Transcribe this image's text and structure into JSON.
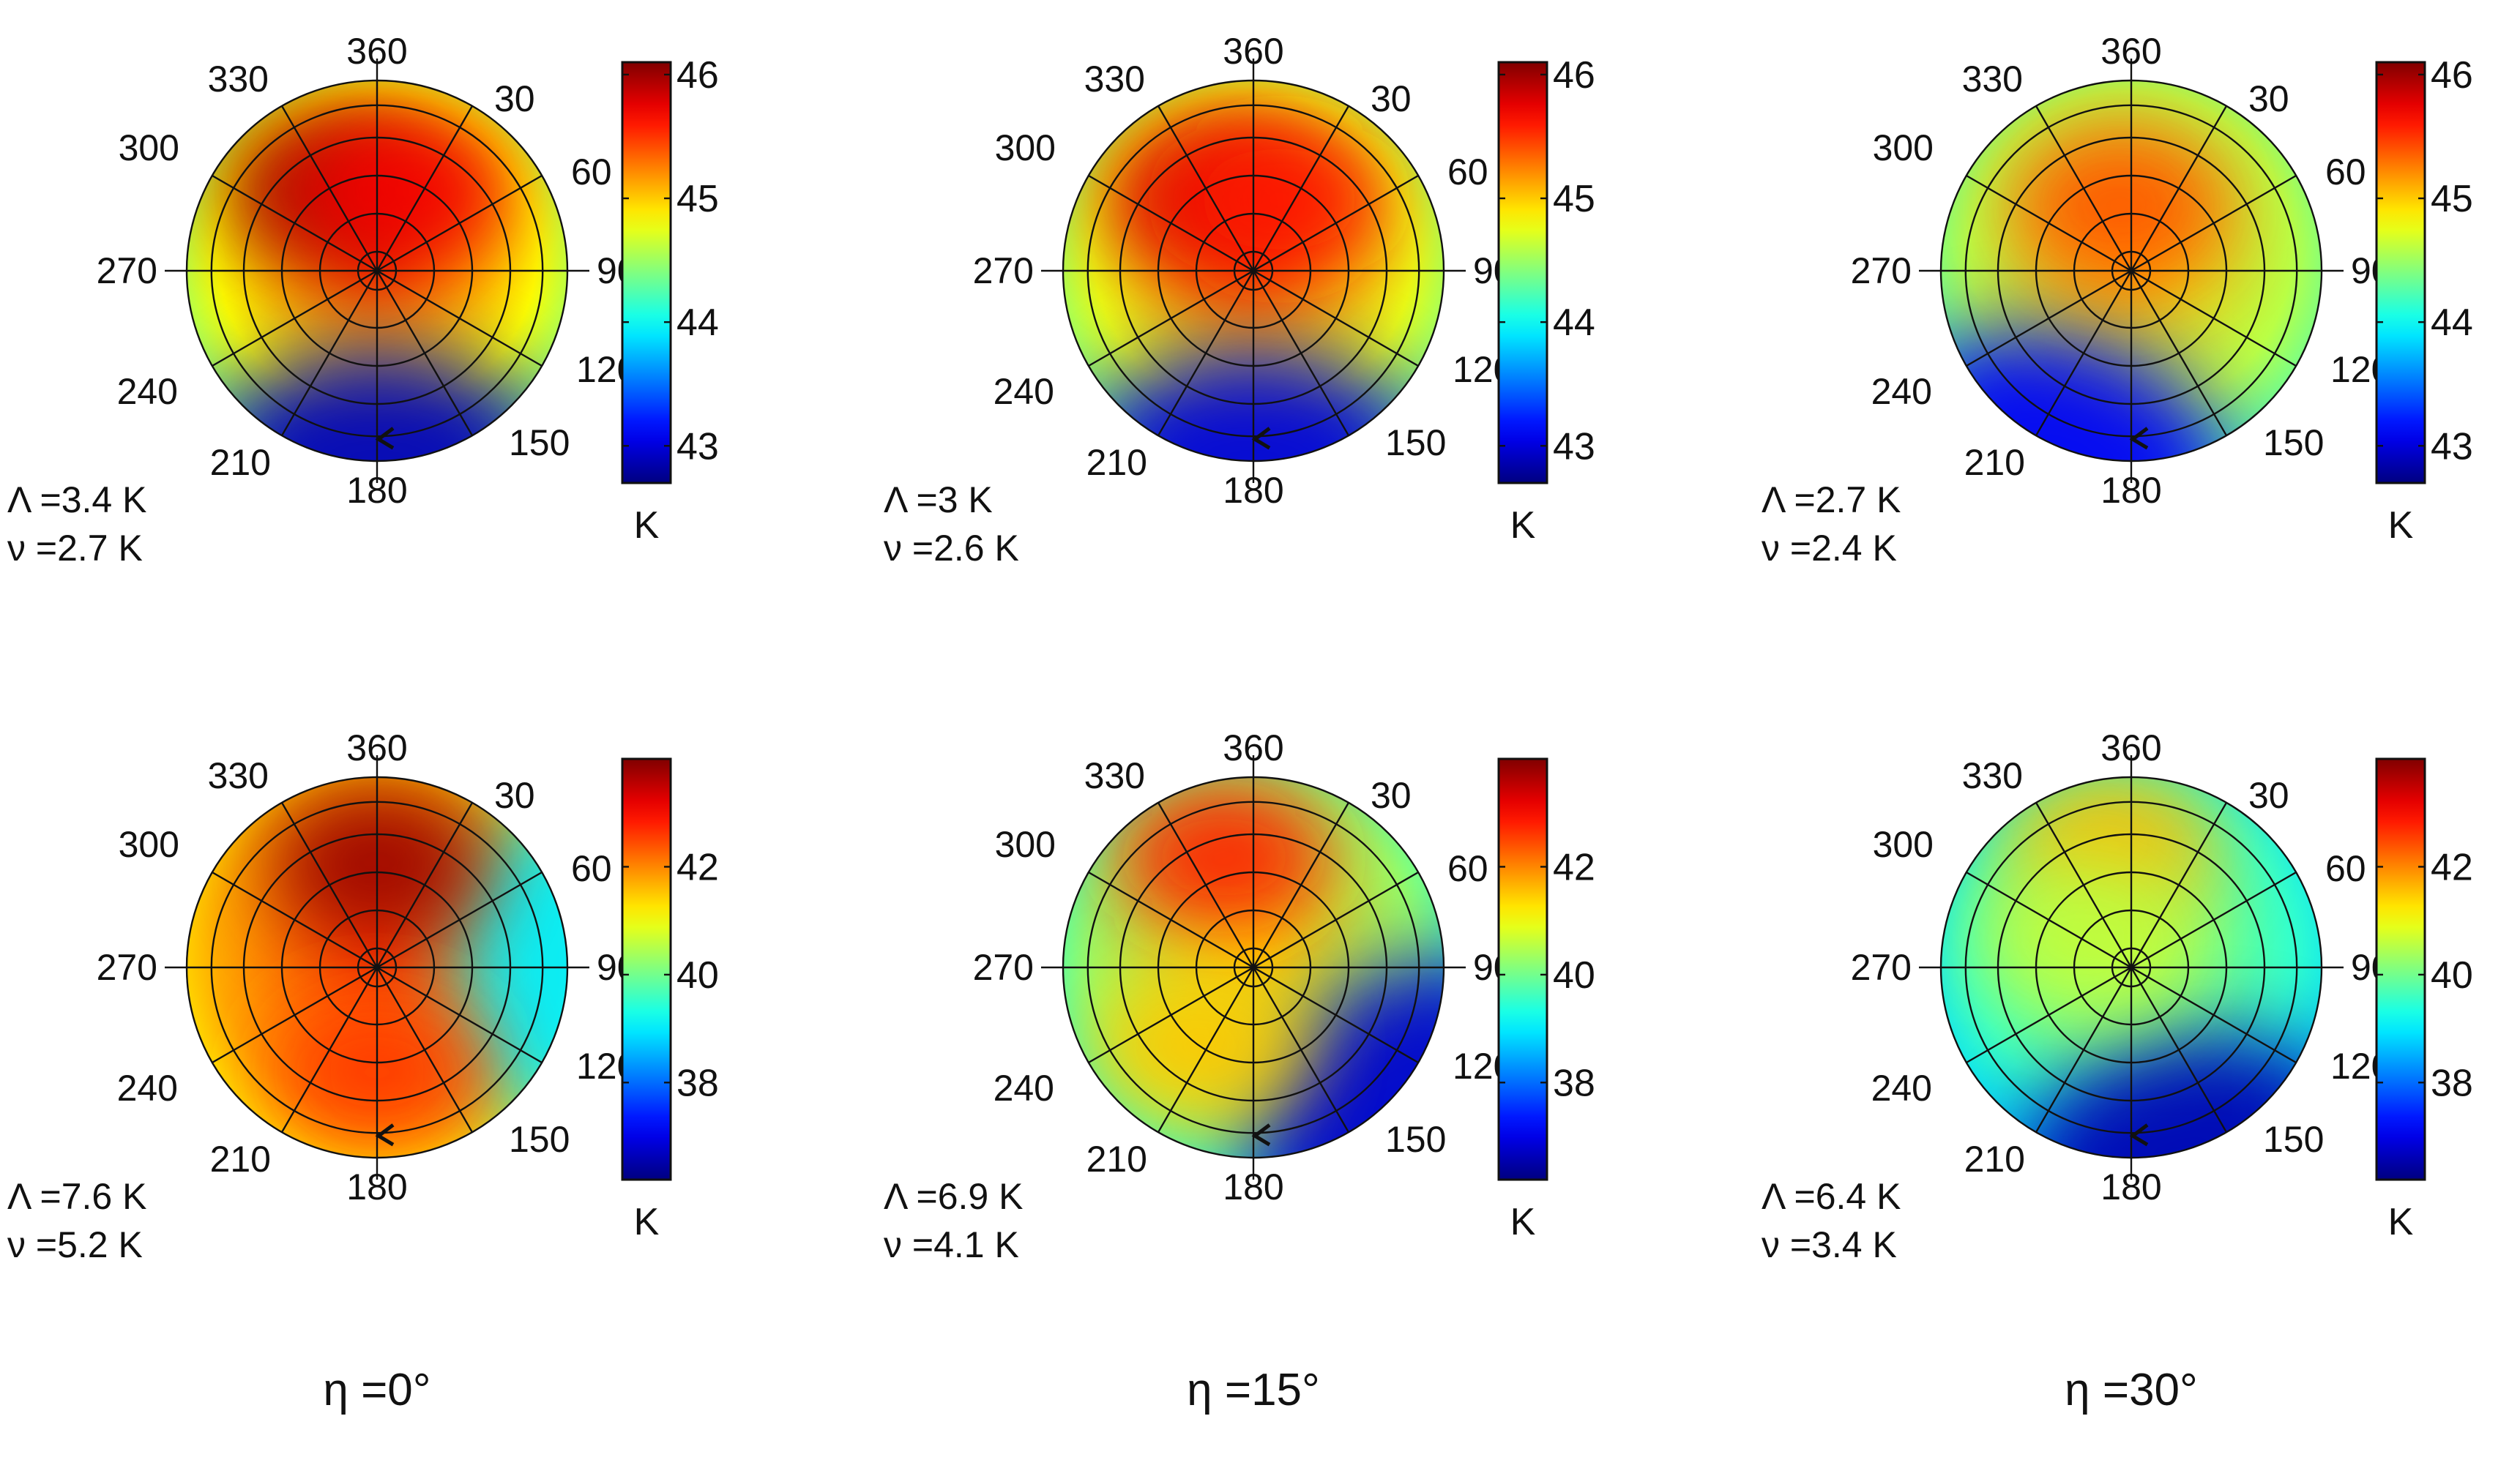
{
  "chart_data": [
    {
      "type": "heatmap",
      "projection": "polar",
      "angles": [
        "360",
        "30",
        "60",
        "90",
        "120",
        "150",
        "180",
        "210",
        "240",
        "270",
        "300",
        "330"
      ],
      "colorbar": {
        "ticks": [
          "43",
          "44",
          "45",
          "46"
        ],
        "range": [
          42.7,
          46.1
        ],
        "unit": "K",
        "colormap": "jet"
      },
      "stats": {
        "lambda": "Λ =3.4 K",
        "nu": "ν =2.7 K"
      },
      "column_label": "",
      "hotspots": [
        {
          "r": 0.5,
          "theta": 330,
          "value": 46.0
        },
        {
          "r": 0.45,
          "theta": 20,
          "value": 45.7
        }
      ],
      "rim_low": {
        "theta": 180,
        "value": 42.9
      }
    },
    {
      "type": "heatmap",
      "projection": "polar",
      "angles": [
        "360",
        "30",
        "60",
        "90",
        "120",
        "150",
        "180",
        "210",
        "240",
        "270",
        "300",
        "330"
      ],
      "colorbar": {
        "ticks": [
          "43",
          "44",
          "45",
          "46"
        ],
        "range": [
          42.7,
          46.1
        ],
        "unit": "K",
        "colormap": "jet"
      },
      "stats": {
        "lambda": "Λ =3 K",
        "nu": "ν =2.6 K"
      },
      "column_label": "",
      "hotspots": [
        {
          "r": 0.45,
          "theta": 330,
          "value": 45.8
        },
        {
          "r": 0.4,
          "theta": 20,
          "value": 45.6
        }
      ],
      "rim_low": {
        "theta": 180,
        "value": 43.0
      }
    },
    {
      "type": "heatmap",
      "projection": "polar",
      "angles": [
        "360",
        "30",
        "60",
        "90",
        "120",
        "150",
        "180",
        "210",
        "240",
        "270",
        "300",
        "330"
      ],
      "colorbar": {
        "ticks": [
          "43",
          "44",
          "45",
          "46"
        ],
        "range": [
          42.7,
          46.1
        ],
        "unit": "K",
        "colormap": "jet"
      },
      "stats": {
        "lambda": "Λ =2.7 K",
        "nu": "ν =2.4 K"
      },
      "column_label": "",
      "hotspots": [
        {
          "r": 0.35,
          "theta": 350,
          "value": 45.4
        }
      ],
      "rim_low": {
        "theta": 200,
        "value": 43.1
      }
    },
    {
      "type": "heatmap",
      "projection": "polar",
      "angles": [
        "360",
        "30",
        "60",
        "90",
        "120",
        "150",
        "180",
        "210",
        "240",
        "270",
        "300",
        "330"
      ],
      "colorbar": {
        "ticks": [
          "38",
          "40",
          "42"
        ],
        "range": [
          36.2,
          44.0
        ],
        "unit": "K",
        "colormap": "jet"
      },
      "stats": {
        "lambda": "Λ =7.6 K",
        "nu": "ν =5.2 K"
      },
      "column_label": "η =0°",
      "hotspots": [
        {
          "r": 0.55,
          "theta": 360,
          "value": 43.8
        },
        {
          "r": 0.55,
          "theta": 180,
          "value": 42.6
        }
      ],
      "rim_low": {
        "theta": 90,
        "value": 39.0
      }
    },
    {
      "type": "heatmap",
      "projection": "polar",
      "angles": [
        "360",
        "30",
        "60",
        "90",
        "120",
        "150",
        "180",
        "210",
        "240",
        "270",
        "300",
        "330"
      ],
      "colorbar": {
        "ticks": [
          "38",
          "40",
          "42"
        ],
        "range": [
          36.2,
          44.0
        ],
        "unit": "K",
        "colormap": "jet"
      },
      "stats": {
        "lambda": "Λ =6.9 K",
        "nu": "ν =4.1 K"
      },
      "column_label": "η =15°",
      "hotspots": [
        {
          "r": 0.6,
          "theta": 345,
          "value": 42.8
        },
        {
          "r": 0.5,
          "theta": 215,
          "value": 41.5
        }
      ],
      "rim_low": {
        "theta": 135,
        "value": 36.8
      }
    },
    {
      "type": "heatmap",
      "projection": "polar",
      "angles": [
        "360",
        "30",
        "60",
        "90",
        "120",
        "150",
        "180",
        "210",
        "240",
        "270",
        "300",
        "330"
      ],
      "colorbar": {
        "ticks": [
          "38",
          "40",
          "42"
        ],
        "range": [
          36.2,
          44.0
        ],
        "unit": "K",
        "colormap": "jet"
      },
      "stats": {
        "lambda": "Λ =6.4 K",
        "nu": "ν =3.4 K"
      },
      "column_label": "η =30°",
      "hotspots": [
        {
          "r": 0.65,
          "theta": 350,
          "value": 41.6
        },
        {
          "r": 0.3,
          "theta": 300,
          "value": 40.6
        }
      ],
      "rim_low": {
        "theta": 165,
        "value": 36.6
      }
    }
  ]
}
